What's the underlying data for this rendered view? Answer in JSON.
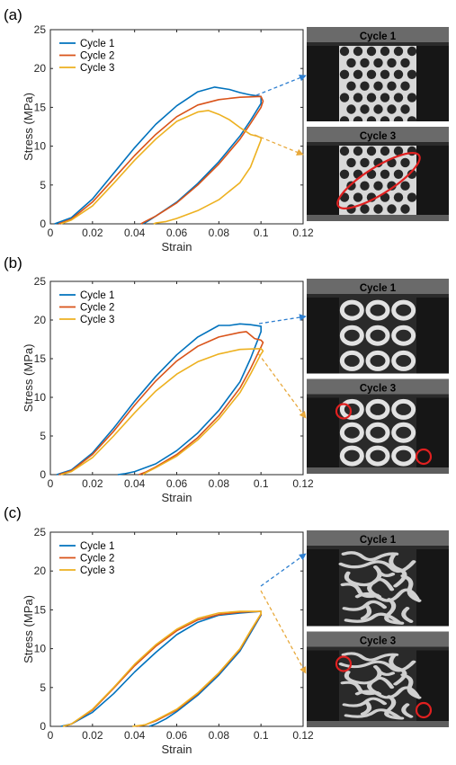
{
  "chart_data": [
    {
      "panel_label": "(a)",
      "type": "line",
      "xlabel": "Strain",
      "ylabel": "Stress (MPa)",
      "xlim": [
        0,
        0.12
      ],
      "ylim": [
        0,
        25
      ],
      "xticks": [
        0,
        0.02,
        0.04,
        0.06,
        0.08,
        0.1,
        0.12
      ],
      "xtick_labels": [
        "0",
        "0.02",
        "0.04",
        "0.06",
        "0.08",
        "0.1",
        "0.12"
      ],
      "yticks": [
        0,
        5,
        10,
        15,
        20,
        25
      ],
      "ytick_labels": [
        "0",
        "5",
        "10",
        "15",
        "20",
        "25"
      ],
      "grid": false,
      "legend": "top-left",
      "series": [
        {
          "name": "Cycle 1",
          "color": "#0072BD",
          "x": [
            0.002,
            0.01,
            0.02,
            0.03,
            0.04,
            0.05,
            0.06,
            0.07,
            0.078,
            0.085,
            0.09,
            0.095,
            0.1,
            0.1,
            0.095,
            0.09,
            0.08,
            0.07,
            0.06,
            0.05,
            0.046,
            0.044
          ],
          "y": [
            0,
            0.8,
            3.2,
            6.5,
            9.8,
            12.8,
            15.2,
            17.0,
            17.6,
            17.3,
            16.9,
            16.6,
            16.4,
            15.5,
            13.3,
            11.3,
            8.0,
            5.2,
            2.8,
            1.0,
            0.3,
            0
          ]
        },
        {
          "name": "Cycle 2",
          "color": "#D95319",
          "x": [
            0.004,
            0.01,
            0.02,
            0.03,
            0.04,
            0.05,
            0.06,
            0.07,
            0.08,
            0.09,
            0.1,
            0.101,
            0.1,
            0.095,
            0.09,
            0.08,
            0.07,
            0.06,
            0.05,
            0.045,
            0.043
          ],
          "y": [
            0,
            0.6,
            2.8,
            5.8,
            8.8,
            11.5,
            13.8,
            15.3,
            16.0,
            16.3,
            16.4,
            15.8,
            15.0,
            12.9,
            10.9,
            7.7,
            5.0,
            2.7,
            1.0,
            0.3,
            0
          ]
        },
        {
          "name": "Cycle 3",
          "color": "#EDB120",
          "x": [
            0.005,
            0.01,
            0.02,
            0.03,
            0.04,
            0.05,
            0.06,
            0.07,
            0.075,
            0.08,
            0.085,
            0.09,
            0.095,
            0.098,
            0.1,
            0.1,
            0.095,
            0.09,
            0.08,
            0.07,
            0.06,
            0.055,
            0.05,
            0.049
          ],
          "y": [
            0,
            0.5,
            2.3,
            5.2,
            8.2,
            10.9,
            13.2,
            14.4,
            14.6,
            14.1,
            13.4,
            12.4,
            11.5,
            11.3,
            11.1,
            10.8,
            7.3,
            5.3,
            3.1,
            1.7,
            0.7,
            0.3,
            0.1,
            0
          ]
        }
      ]
    },
    {
      "panel_label": "(b)",
      "type": "line",
      "xlabel": "Strain",
      "ylabel": "Stress (MPa)",
      "xlim": [
        0,
        0.12
      ],
      "ylim": [
        0,
        25
      ],
      "xticks": [
        0,
        0.02,
        0.04,
        0.06,
        0.08,
        0.1,
        0.12
      ],
      "xtick_labels": [
        "0",
        "0.02",
        "0.04",
        "0.06",
        "0.08",
        "0.1",
        "0.12"
      ],
      "yticks": [
        0,
        5,
        10,
        15,
        20,
        25
      ],
      "ytick_labels": [
        "0",
        "5",
        "10",
        "15",
        "20",
        "25"
      ],
      "grid": false,
      "legend": "top-left",
      "series": [
        {
          "name": "Cycle 1",
          "color": "#0072BD",
          "x": [
            0.003,
            0.01,
            0.02,
            0.03,
            0.04,
            0.05,
            0.06,
            0.07,
            0.08,
            0.085,
            0.09,
            0.095,
            0.1,
            0.1,
            0.095,
            0.09,
            0.08,
            0.07,
            0.06,
            0.05,
            0.04,
            0.035,
            0.032
          ],
          "y": [
            0,
            0.6,
            2.8,
            6.0,
            9.5,
            12.7,
            15.5,
            17.8,
            19.3,
            19.3,
            19.5,
            19.4,
            19.2,
            18.5,
            15.0,
            12.0,
            8.3,
            5.4,
            3.1,
            1.4,
            0.4,
            0.1,
            0
          ]
        },
        {
          "name": "Cycle 2",
          "color": "#D95319",
          "x": [
            0.004,
            0.01,
            0.02,
            0.03,
            0.04,
            0.05,
            0.06,
            0.07,
            0.08,
            0.09,
            0.093,
            0.097,
            0.1,
            0.101,
            0.1,
            0.095,
            0.09,
            0.08,
            0.07,
            0.06,
            0.05,
            0.045,
            0.042
          ],
          "y": [
            0,
            0.5,
            2.6,
            5.6,
            9.0,
            12.1,
            14.7,
            16.6,
            17.8,
            18.4,
            18.5,
            17.6,
            17.4,
            17.1,
            16.5,
            13.7,
            11.2,
            7.6,
            4.8,
            2.6,
            1.0,
            0.3,
            0
          ]
        },
        {
          "name": "Cycle 3",
          "color": "#EDB120",
          "x": [
            0.005,
            0.01,
            0.02,
            0.03,
            0.04,
            0.05,
            0.06,
            0.07,
            0.08,
            0.09,
            0.1,
            0.101,
            0.1,
            0.095,
            0.09,
            0.08,
            0.07,
            0.06,
            0.05,
            0.045,
            0.044
          ],
          "y": [
            0,
            0.4,
            2.2,
            5.0,
            8.0,
            10.8,
            13.0,
            14.6,
            15.6,
            16.2,
            16.3,
            16.0,
            15.6,
            13.0,
            10.6,
            7.2,
            4.5,
            2.4,
            0.9,
            0.2,
            0
          ]
        }
      ]
    },
    {
      "panel_label": "(c)",
      "type": "line",
      "xlabel": "Strain",
      "ylabel": "Stress (MPa)",
      "xlim": [
        0,
        0.12
      ],
      "ylim": [
        0,
        25
      ],
      "xticks": [
        0,
        0.02,
        0.04,
        0.06,
        0.08,
        0.1,
        0.12
      ],
      "xtick_labels": [
        "0",
        "0.02",
        "0.04",
        "0.06",
        "0.08",
        "0.1",
        "0.12"
      ],
      "yticks": [
        0,
        5,
        10,
        15,
        20,
        25
      ],
      "ytick_labels": [
        "0",
        "5",
        "10",
        "15",
        "20",
        "25"
      ],
      "grid": false,
      "legend": "top-left",
      "series": [
        {
          "name": "Cycle 1",
          "color": "#0072BD",
          "x": [
            0.005,
            0.01,
            0.02,
            0.03,
            0.04,
            0.05,
            0.06,
            0.07,
            0.08,
            0.09,
            0.1,
            0.1,
            0.095,
            0.09,
            0.08,
            0.07,
            0.06,
            0.055,
            0.05,
            0.047
          ],
          "y": [
            0,
            0.3,
            1.8,
            4.2,
            7.0,
            9.5,
            11.8,
            13.4,
            14.3,
            14.6,
            14.8,
            14.3,
            12.0,
            9.7,
            6.6,
            4.0,
            1.9,
            1.0,
            0.3,
            0
          ]
        },
        {
          "name": "Cycle 2",
          "color": "#D95319",
          "x": [
            0.006,
            0.01,
            0.02,
            0.03,
            0.04,
            0.05,
            0.06,
            0.07,
            0.08,
            0.09,
            0.1,
            0.1,
            0.095,
            0.09,
            0.08,
            0.07,
            0.06,
            0.05,
            0.045,
            0.041
          ],
          "y": [
            0,
            0.3,
            2.1,
            4.9,
            7.8,
            10.3,
            12.3,
            13.7,
            14.4,
            14.7,
            14.8,
            14.4,
            12.2,
            9.9,
            6.8,
            4.2,
            2.1,
            0.7,
            0.2,
            0
          ]
        },
        {
          "name": "Cycle 3",
          "color": "#EDB120",
          "x": [
            0.006,
            0.01,
            0.02,
            0.03,
            0.04,
            0.05,
            0.06,
            0.07,
            0.08,
            0.09,
            0.1,
            0.1,
            0.095,
            0.09,
            0.08,
            0.07,
            0.06,
            0.05,
            0.045,
            0.039
          ],
          "y": [
            0,
            0.3,
            2.2,
            5.0,
            8.0,
            10.5,
            12.5,
            13.9,
            14.6,
            14.8,
            14.8,
            14.5,
            12.3,
            10.0,
            6.9,
            4.3,
            2.2,
            0.8,
            0.2,
            0
          ]
        }
      ]
    }
  ],
  "photos": [
    {
      "top_label": "Cycle 1",
      "bottom_label": "Cycle 3",
      "pattern": "square-lattice"
    },
    {
      "top_label": "Cycle 1",
      "bottom_label": "Cycle 3",
      "pattern": "ring-array"
    },
    {
      "top_label": "Cycle 1",
      "bottom_label": "Cycle 3",
      "pattern": "labyrinth"
    }
  ],
  "colors": {
    "annotation_blue": "#2E7FD0",
    "annotation_yellow": "#E8A93C",
    "highlight_red": "#E02020"
  }
}
